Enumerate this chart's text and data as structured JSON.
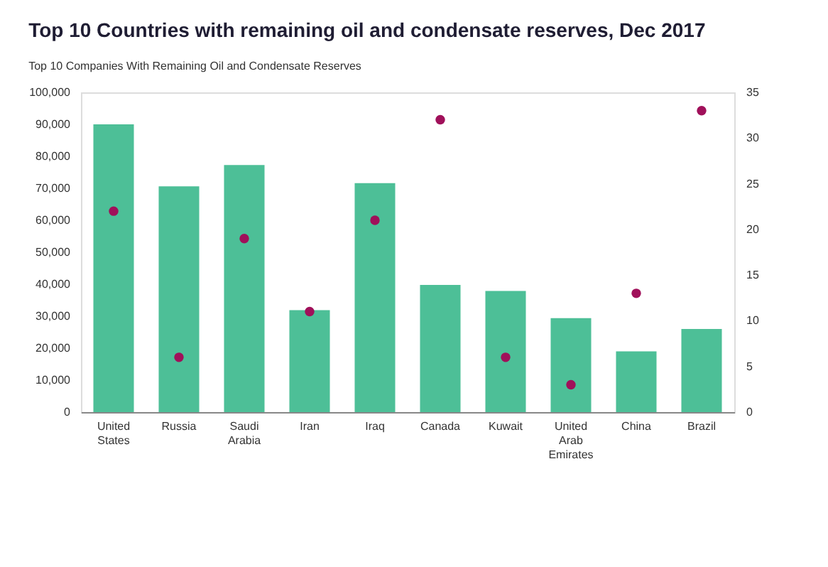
{
  "chart_data": {
    "type": "bar",
    "title": "Top 10 Countries with remaining oil and condensate reserves, Dec 2017",
    "subtitle": "Top 10 Companies With Remaining Oil and Condensate Reserves",
    "categories": [
      "United States",
      "Russia",
      "Saudi Arabia",
      "Iran",
      "Iraq",
      "Canada",
      "Kuwait",
      "United Arab Emirates",
      "China",
      "Brazil"
    ],
    "series": [
      {
        "color": "#4dbf97",
        "values": [
          90000,
          70600,
          77300,
          31900,
          71600,
          39800,
          37900,
          29400,
          19000,
          26000
        ]
      },
      {
        "type": "scatter",
        "axis": "y2",
        "color": "#a0105a",
        "values": [
          22,
          6,
          19,
          11,
          21,
          32,
          6,
          3,
          13,
          33
        ]
      }
    ],
    "ylim": [
      0,
      100000
    ],
    "yticks": [
      0,
      {
        "value": 10000,
        "label": "10,000"
      },
      {
        "value": 20000,
        "label": "20,000"
      },
      {
        "value": 30000,
        "label": "30,000"
      },
      {
        "value": 40000,
        "label": "40,000"
      },
      {
        "value": 50000,
        "label": "50,000"
      },
      {
        "value": 60000,
        "label": "60,000"
      },
      {
        "value": 70000,
        "label": "70,000"
      },
      {
        "value": 80000,
        "label": "80,000"
      },
      {
        "value": 90000,
        "label": "90,000"
      },
      {
        "value": 100000,
        "label": "100,000"
      }
    ],
    "y2lim": [
      0,
      35
    ],
    "y2ticks": [
      0,
      5,
      10,
      15,
      20,
      25,
      30,
      35
    ],
    "grid": false,
    "marker": "circle"
  }
}
